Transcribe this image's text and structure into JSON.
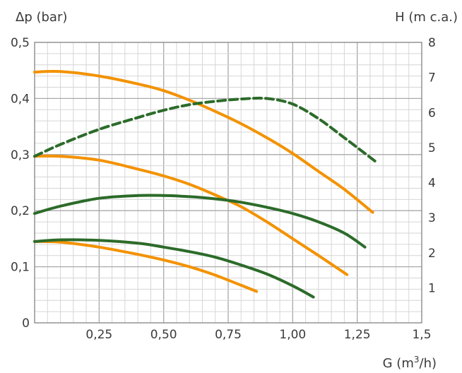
{
  "chart_data": {
    "type": "line",
    "y_left_label": "Δp (bar)",
    "y_right_label": "H (m c.a.)",
    "x_label_main": "G (m",
    "x_label_sup": "3",
    "x_label_tail": "/h)",
    "xlim": [
      0,
      1.5
    ],
    "ylim_left": [
      0,
      0.5
    ],
    "ylim_right": [
      0,
      8
    ],
    "x_ticks": [
      {
        "value": 0.25,
        "label": "0,25"
      },
      {
        "value": 0.5,
        "label": "0,50"
      },
      {
        "value": 0.75,
        "label": "0,75"
      },
      {
        "value": 1.0,
        "label": "1,00"
      },
      {
        "value": 1.25,
        "label": "1,25"
      },
      {
        "value": 1.5,
        "label": "1,5"
      }
    ],
    "left_ticks": [
      {
        "value": 0,
        "label": "0"
      },
      {
        "value": 0.1,
        "label": "0,1"
      },
      {
        "value": 0.2,
        "label": "0,2"
      },
      {
        "value": 0.3,
        "label": "0,3"
      },
      {
        "value": 0.4,
        "label": "0,4"
      },
      {
        "value": 0.5,
        "label": "0,5"
      }
    ],
    "right_ticks": [
      {
        "value": 1,
        "label": "1"
      },
      {
        "value": 2,
        "label": "2"
      },
      {
        "value": 3,
        "label": "3"
      },
      {
        "value": 4,
        "label": "4"
      },
      {
        "value": 5,
        "label": "5"
      },
      {
        "value": 6,
        "label": "6"
      },
      {
        "value": 7,
        "label": "7"
      },
      {
        "value": 8,
        "label": "8"
      }
    ],
    "grid": true,
    "series": [
      {
        "color": "#f39200",
        "dashed": false,
        "points": [
          [
            0,
            0.447
          ],
          [
            0.1,
            0.448
          ],
          [
            0.25,
            0.44
          ],
          [
            0.4,
            0.426
          ],
          [
            0.5,
            0.414
          ],
          [
            0.6,
            0.397
          ],
          [
            0.7,
            0.377
          ],
          [
            0.8,
            0.355
          ],
          [
            0.9,
            0.33
          ],
          [
            1.0,
            0.302
          ],
          [
            1.1,
            0.27
          ],
          [
            1.2,
            0.238
          ],
          [
            1.31,
            0.197
          ]
        ]
      },
      {
        "color": "#f39200",
        "dashed": false,
        "points": [
          [
            0,
            0.297
          ],
          [
            0.1,
            0.297
          ],
          [
            0.25,
            0.29
          ],
          [
            0.4,
            0.274
          ],
          [
            0.5,
            0.262
          ],
          [
            0.6,
            0.247
          ],
          [
            0.7,
            0.228
          ],
          [
            0.8,
            0.207
          ],
          [
            0.9,
            0.18
          ],
          [
            1.0,
            0.15
          ],
          [
            1.1,
            0.12
          ],
          [
            1.21,
            0.086
          ]
        ]
      },
      {
        "color": "#f39200",
        "dashed": false,
        "points": [
          [
            0,
            0.145
          ],
          [
            0.1,
            0.144
          ],
          [
            0.25,
            0.135
          ],
          [
            0.4,
            0.122
          ],
          [
            0.5,
            0.112
          ],
          [
            0.6,
            0.1
          ],
          [
            0.7,
            0.085
          ],
          [
            0.8,
            0.067
          ],
          [
            0.86,
            0.056
          ]
        ]
      },
      {
        "color": "#2c6b2a",
        "dashed": false,
        "points": [
          [
            0,
            0.195
          ],
          [
            0.1,
            0.208
          ],
          [
            0.25,
            0.222
          ],
          [
            0.4,
            0.227
          ],
          [
            0.5,
            0.227
          ],
          [
            0.6,
            0.225
          ],
          [
            0.7,
            0.221
          ],
          [
            0.8,
            0.215
          ],
          [
            0.9,
            0.206
          ],
          [
            1.0,
            0.195
          ],
          [
            1.1,
            0.18
          ],
          [
            1.2,
            0.16
          ],
          [
            1.28,
            0.135
          ]
        ]
      },
      {
        "color": "#2c6b2a",
        "dashed": false,
        "points": [
          [
            0,
            0.145
          ],
          [
            0.1,
            0.148
          ],
          [
            0.25,
            0.147
          ],
          [
            0.4,
            0.142
          ],
          [
            0.5,
            0.135
          ],
          [
            0.6,
            0.127
          ],
          [
            0.7,
            0.117
          ],
          [
            0.8,
            0.103
          ],
          [
            0.9,
            0.087
          ],
          [
            1.0,
            0.066
          ],
          [
            1.08,
            0.046
          ]
        ]
      },
      {
        "color": "#2c6b2a",
        "dashed": true,
        "points": [
          [
            0,
            0.297
          ],
          [
            0.1,
            0.318
          ],
          [
            0.25,
            0.345
          ],
          [
            0.4,
            0.366
          ],
          [
            0.5,
            0.379
          ],
          [
            0.6,
            0.389
          ],
          [
            0.7,
            0.395
          ],
          [
            0.8,
            0.399
          ],
          [
            0.9,
            0.4
          ],
          [
            1.0,
            0.39
          ],
          [
            1.1,
            0.364
          ],
          [
            1.2,
            0.33
          ],
          [
            1.32,
            0.288
          ]
        ]
      }
    ]
  }
}
